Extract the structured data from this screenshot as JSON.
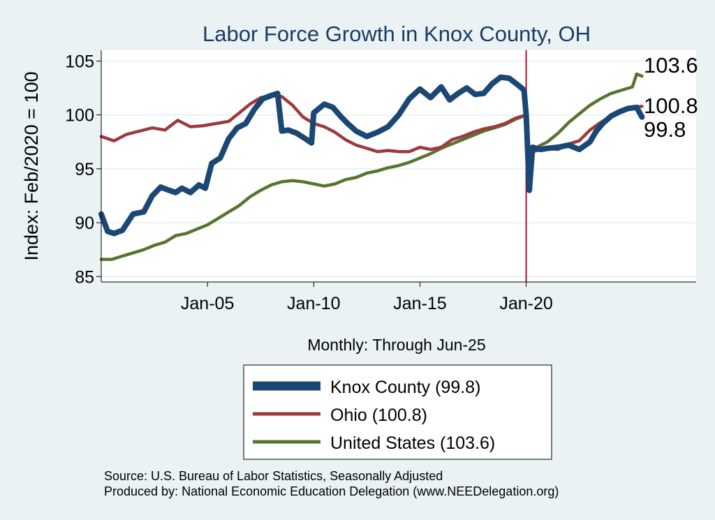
{
  "chart_data": {
    "type": "line",
    "title": "Labor Force Growth in Knox  County, OH",
    "xlabel": "Monthly: Through Jun-25",
    "ylabel": "Index: Feb/2020 = 100",
    "ylim": [
      84.5,
      106
    ],
    "yticks": [
      85,
      90,
      95,
      100,
      105
    ],
    "xlim": [
      2000.0,
      2028.0
    ],
    "xticks": [
      {
        "label": "Jan-05",
        "value": 2005.0
      },
      {
        "label": "Jan-10",
        "value": 2010.0
      },
      {
        "label": "Jan-15",
        "value": 2015.0
      },
      {
        "label": "Jan-20",
        "value": 2020.0
      }
    ],
    "vline": {
      "value": 2020.0,
      "color": "#b0113a"
    },
    "grid": true,
    "legend_position": "bottom",
    "series": [
      {
        "name": "Knox  County",
        "legend": "Knox  County (99.8)",
        "end_label": "99.8",
        "color": "#1a4773",
        "points": [
          [
            2000.0,
            90.8
          ],
          [
            2000.3,
            89.2
          ],
          [
            2000.6,
            89.0
          ],
          [
            2001.0,
            89.3
          ],
          [
            2001.5,
            90.8
          ],
          [
            2002.0,
            91.0
          ],
          [
            2002.4,
            92.5
          ],
          [
            2002.8,
            93.3
          ],
          [
            2003.2,
            93.0
          ],
          [
            2003.5,
            92.8
          ],
          [
            2003.8,
            93.2
          ],
          [
            2004.2,
            92.8
          ],
          [
            2004.6,
            93.5
          ],
          [
            2004.9,
            93.2
          ],
          [
            2005.2,
            95.5
          ],
          [
            2005.6,
            96.0
          ],
          [
            2006.0,
            97.8
          ],
          [
            2006.4,
            98.8
          ],
          [
            2006.8,
            99.2
          ],
          [
            2007.2,
            100.5
          ],
          [
            2007.6,
            101.5
          ],
          [
            2008.0,
            101.8
          ],
          [
            2008.3,
            102.0
          ],
          [
            2008.5,
            98.5
          ],
          [
            2008.8,
            98.6
          ],
          [
            2009.2,
            98.3
          ],
          [
            2009.6,
            97.8
          ],
          [
            2009.9,
            97.4
          ],
          [
            2010.0,
            100.2
          ],
          [
            2010.5,
            101.0
          ],
          [
            2010.9,
            100.7
          ],
          [
            2011.3,
            99.8
          ],
          [
            2011.6,
            99.2
          ],
          [
            2012.0,
            98.5
          ],
          [
            2012.5,
            98.0
          ],
          [
            2013.0,
            98.4
          ],
          [
            2013.5,
            98.9
          ],
          [
            2014.0,
            100.0
          ],
          [
            2014.5,
            101.5
          ],
          [
            2015.0,
            102.4
          ],
          [
            2015.5,
            101.6
          ],
          [
            2016.0,
            102.6
          ],
          [
            2016.4,
            101.4
          ],
          [
            2016.8,
            102.0
          ],
          [
            2017.2,
            102.5
          ],
          [
            2017.6,
            101.9
          ],
          [
            2018.0,
            102.0
          ],
          [
            2018.4,
            102.9
          ],
          [
            2018.8,
            103.5
          ],
          [
            2019.2,
            103.4
          ],
          [
            2019.6,
            102.8
          ],
          [
            2019.9,
            102.3
          ],
          [
            2020.0,
            100.0
          ],
          [
            2020.15,
            93.0
          ],
          [
            2020.3,
            97.0
          ],
          [
            2020.7,
            96.8
          ],
          [
            2021.0,
            96.9
          ],
          [
            2021.5,
            97.0
          ],
          [
            2022.0,
            97.2
          ],
          [
            2022.5,
            96.8
          ],
          [
            2023.0,
            97.5
          ],
          [
            2023.3,
            98.5
          ],
          [
            2023.6,
            99.2
          ],
          [
            2024.0,
            99.9
          ],
          [
            2024.4,
            100.3
          ],
          [
            2024.8,
            100.6
          ],
          [
            2025.2,
            100.7
          ],
          [
            2025.45,
            99.8
          ]
        ]
      },
      {
        "name": "Ohio",
        "legend": "Ohio (100.8)",
        "end_label": "100.8",
        "color": "#9c3a3e",
        "points": [
          [
            2000.0,
            98.0
          ],
          [
            2000.6,
            97.6
          ],
          [
            2001.2,
            98.2
          ],
          [
            2001.8,
            98.5
          ],
          [
            2002.4,
            98.8
          ],
          [
            2003.0,
            98.6
          ],
          [
            2003.6,
            99.5
          ],
          [
            2004.2,
            98.9
          ],
          [
            2004.8,
            99.0
          ],
          [
            2005.4,
            99.2
          ],
          [
            2006.0,
            99.4
          ],
          [
            2006.5,
            100.2
          ],
          [
            2007.0,
            101.0
          ],
          [
            2007.5,
            101.6
          ],
          [
            2008.0,
            101.8
          ],
          [
            2008.5,
            101.7
          ],
          [
            2009.0,
            100.9
          ],
          [
            2009.5,
            99.8
          ],
          [
            2010.0,
            99.2
          ],
          [
            2010.5,
            98.9
          ],
          [
            2011.0,
            98.4
          ],
          [
            2011.5,
            97.7
          ],
          [
            2012.0,
            97.2
          ],
          [
            2012.5,
            96.9
          ],
          [
            2013.0,
            96.6
          ],
          [
            2013.5,
            96.7
          ],
          [
            2014.0,
            96.6
          ],
          [
            2014.5,
            96.6
          ],
          [
            2015.0,
            97.0
          ],
          [
            2015.5,
            96.8
          ],
          [
            2016.0,
            97.0
          ],
          [
            2016.5,
            97.7
          ],
          [
            2017.0,
            98.0
          ],
          [
            2017.5,
            98.4
          ],
          [
            2018.0,
            98.7
          ],
          [
            2018.5,
            98.9
          ],
          [
            2019.0,
            99.2
          ],
          [
            2019.5,
            99.7
          ],
          [
            2020.0,
            100.0
          ],
          [
            2020.15,
            93.4
          ],
          [
            2020.3,
            96.6
          ],
          [
            2021.0,
            96.9
          ],
          [
            2021.5,
            96.8
          ],
          [
            2022.0,
            97.3
          ],
          [
            2022.5,
            97.6
          ],
          [
            2023.0,
            98.6
          ],
          [
            2023.5,
            99.3
          ],
          [
            2024.0,
            99.9
          ],
          [
            2024.5,
            100.3
          ],
          [
            2025.0,
            100.7
          ],
          [
            2025.45,
            100.8
          ]
        ]
      },
      {
        "name": "United States",
        "legend": "United States (103.6)",
        "end_label": "103.6",
        "color": "#58752e",
        "points": [
          [
            2000.0,
            86.6
          ],
          [
            2000.5,
            86.6
          ],
          [
            2001.0,
            86.9
          ],
          [
            2001.5,
            87.2
          ],
          [
            2002.0,
            87.5
          ],
          [
            2002.5,
            87.9
          ],
          [
            2003.0,
            88.2
          ],
          [
            2003.5,
            88.8
          ],
          [
            2004.0,
            89.0
          ],
          [
            2004.5,
            89.4
          ],
          [
            2005.0,
            89.8
          ],
          [
            2005.5,
            90.4
          ],
          [
            2006.0,
            91.0
          ],
          [
            2006.5,
            91.6
          ],
          [
            2007.0,
            92.4
          ],
          [
            2007.5,
            93.0
          ],
          [
            2008.0,
            93.5
          ],
          [
            2008.5,
            93.8
          ],
          [
            2009.0,
            93.9
          ],
          [
            2009.5,
            93.8
          ],
          [
            2010.0,
            93.6
          ],
          [
            2010.5,
            93.4
          ],
          [
            2011.0,
            93.6
          ],
          [
            2011.5,
            94.0
          ],
          [
            2012.0,
            94.2
          ],
          [
            2012.5,
            94.6
          ],
          [
            2013.0,
            94.8
          ],
          [
            2013.5,
            95.1
          ],
          [
            2014.0,
            95.3
          ],
          [
            2014.5,
            95.6
          ],
          [
            2015.0,
            96.0
          ],
          [
            2015.5,
            96.4
          ],
          [
            2016.0,
            96.9
          ],
          [
            2016.5,
            97.3
          ],
          [
            2017.0,
            97.7
          ],
          [
            2017.5,
            98.1
          ],
          [
            2018.0,
            98.5
          ],
          [
            2018.5,
            98.8
          ],
          [
            2019.0,
            99.1
          ],
          [
            2019.5,
            99.6
          ],
          [
            2020.0,
            100.0
          ],
          [
            2020.15,
            95.0
          ],
          [
            2020.3,
            96.5
          ],
          [
            2020.6,
            97.1
          ],
          [
            2021.0,
            97.5
          ],
          [
            2021.5,
            98.3
          ],
          [
            2022.0,
            99.3
          ],
          [
            2022.5,
            100.1
          ],
          [
            2023.0,
            100.9
          ],
          [
            2023.5,
            101.5
          ],
          [
            2024.0,
            102.0
          ],
          [
            2024.5,
            102.3
          ],
          [
            2025.0,
            102.6
          ],
          [
            2025.2,
            103.8
          ],
          [
            2025.45,
            103.6
          ]
        ]
      }
    ],
    "source_lines": [
      "Source: U.S. Bureau of Labor Statistics, Seasonally Adjusted",
      "Produced by: National Economic Education Delegation (www.NEEDelegation.org)"
    ]
  }
}
